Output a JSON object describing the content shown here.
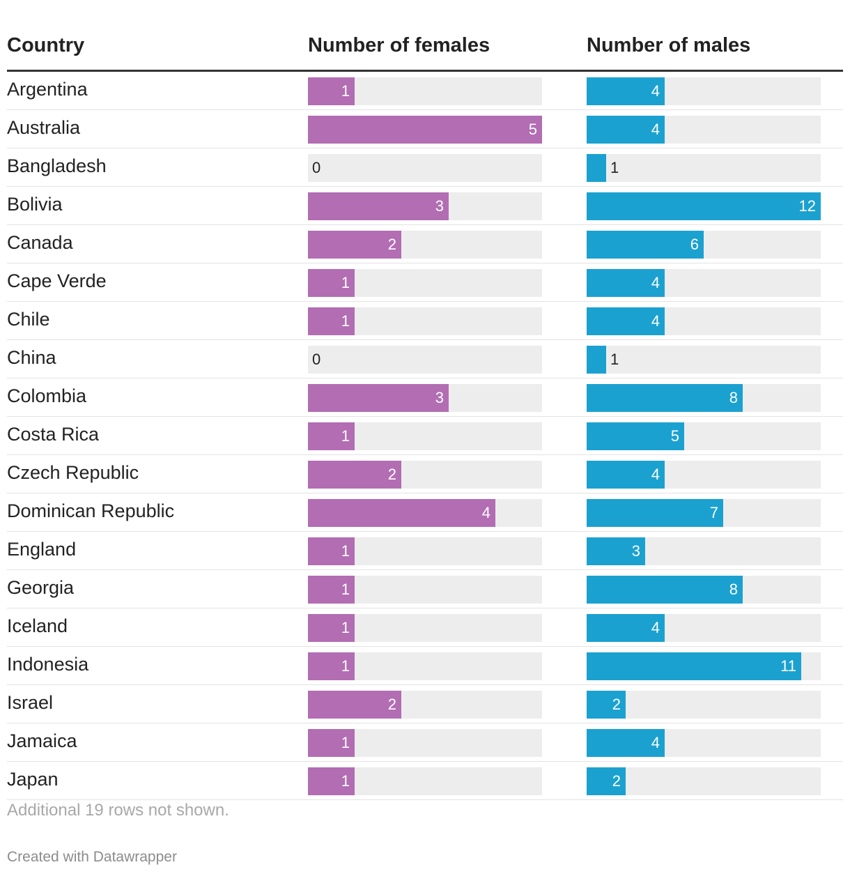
{
  "chart_data": {
    "type": "table",
    "columns": [
      "Country",
      "Number of females",
      "Number of males"
    ],
    "scale_max": {
      "females": 5,
      "males": 12
    },
    "rows": [
      {
        "country": "Argentina",
        "females": 1,
        "males": 4
      },
      {
        "country": "Australia",
        "females": 5,
        "males": 4
      },
      {
        "country": "Bangladesh",
        "females": 0,
        "males": 1
      },
      {
        "country": "Bolivia",
        "females": 3,
        "males": 12
      },
      {
        "country": "Canada",
        "females": 2,
        "males": 6
      },
      {
        "country": "Cape Verde",
        "females": 1,
        "males": 4
      },
      {
        "country": "Chile",
        "females": 1,
        "males": 4
      },
      {
        "country": "China",
        "females": 0,
        "males": 1
      },
      {
        "country": "Colombia",
        "females": 3,
        "males": 8
      },
      {
        "country": "Costa Rica",
        "females": 1,
        "males": 5
      },
      {
        "country": "Czech Republic",
        "females": 2,
        "males": 4
      },
      {
        "country": "Dominican Republic",
        "females": 4,
        "males": 7
      },
      {
        "country": "England",
        "females": 1,
        "males": 3
      },
      {
        "country": "Georgia",
        "females": 1,
        "males": 8
      },
      {
        "country": "Iceland",
        "females": 1,
        "males": 4
      },
      {
        "country": "Indonesia",
        "females": 1,
        "males": 11
      },
      {
        "country": "Israel",
        "females": 2,
        "males": 2
      },
      {
        "country": "Jamaica",
        "females": 1,
        "males": 4
      },
      {
        "country": "Japan",
        "females": 1,
        "males": 2
      }
    ],
    "colors": {
      "females": "#b26db3",
      "males": "#1ba1d0",
      "track": "#ededed"
    }
  },
  "footer": {
    "note": "Additional 19 rows not shown.",
    "credit": "Created with Datawrapper"
  }
}
